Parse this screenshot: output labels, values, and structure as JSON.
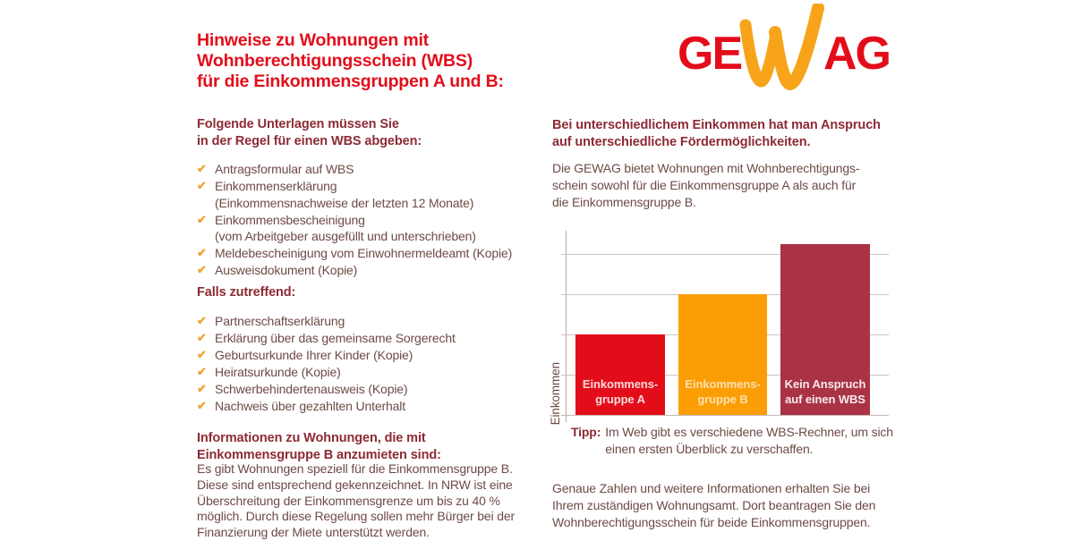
{
  "colors": {
    "brand_red": "#e30d1a",
    "brand_orange": "#f7a41b",
    "dark_heading": "#8d2a33",
    "body_text": "#6e4a46",
    "check_orange": "#f2a233"
  },
  "icons": {
    "check": "✔"
  },
  "title": {
    "lines": [
      "Hinweise zu Wohnungen mit",
      "Wohnberechtigungsschein (WBS)",
      "für die Einkommensgruppen A und B:"
    ]
  },
  "logo": {
    "part1": "GE",
    "w": "W",
    "part2": "AG"
  },
  "left": {
    "section1": {
      "heading_lines": [
        "Folgende Unterlagen müssen Sie",
        "in der Regel für einen WBS abgeben:"
      ],
      "items": [
        {
          "lines": [
            "Antragsformular auf WBS"
          ]
        },
        {
          "lines": [
            "Einkommenserklärung",
            "(Einkommensnachweise der letzten 12 Monate)"
          ]
        },
        {
          "lines": [
            "Einkommensbescheinigung",
            "(vom Arbeitgeber ausgefüllt und unterschrieben)"
          ]
        },
        {
          "lines": [
            "Meldebescheinigung vom Einwohnermeldeamt (Kopie)"
          ]
        },
        {
          "lines": [
            "Ausweisdokument (Kopie)"
          ]
        }
      ]
    },
    "section2": {
      "heading": "Falls zutreffend:",
      "items": [
        {
          "lines": [
            "Partnerschaftserklärung"
          ]
        },
        {
          "lines": [
            "Erklärung über das gemeinsame Sorgerecht"
          ]
        },
        {
          "lines": [
            "Geburtsurkunde Ihrer Kinder (Kopie)"
          ]
        },
        {
          "lines": [
            "Heiratsurkunde (Kopie)"
          ]
        },
        {
          "lines": [
            "Schwerbehindertenausweis (Kopie)"
          ]
        },
        {
          "lines": [
            "Nachweis über gezahlten Unterhalt"
          ]
        }
      ]
    },
    "section3": {
      "heading_lines": [
        "Informationen zu Wohnungen, die mit",
        "Einkommensgruppe B anzumieten sind:"
      ],
      "body_lines": [
        "Es gibt Wohnungen speziell für die Einkommensgruppe B.",
        "Diese sind entsprechend gekennzeichnet. In NRW ist eine",
        "Überschreitung der Einkommensgrenze um bis zu 40 %",
        "möglich. Durch diese Regelung sollen mehr Bürger bei der",
        "Finanzierung der Miete unterstützt werden."
      ]
    }
  },
  "right": {
    "heading_lines": [
      "Bei unterschiedlichem Einkommen hat man Anspruch",
      "auf unterschiedliche Fördermöglichkeiten."
    ],
    "intro_lines": [
      "Die GEWAG bietet Wohnungen mit Wohnberechtigungs-",
      "schein sowohl für die Einkommensgruppe A als auch für",
      "die Einkommensgruppe B."
    ],
    "tip_label": "Tipp:",
    "tip_lines": [
      "Im Web gibt es verschiedene WBS-Rechner, um sich",
      "einen ersten Überblick zu verschaffen."
    ],
    "outro_lines": [
      "Genaue Zahlen und weitere Informationen erhalten Sie bei",
      "Ihrem zuständigen Wohnungsamt. Dort beantragen Sie den",
      "Wohnberechtigungsschein für beide Einkommensgruppen."
    ]
  },
  "chart_data": {
    "type": "bar",
    "title": "",
    "xlabel": "",
    "ylabel": "Einkommen",
    "categories": [
      "Einkommensgruppe A",
      "Einkommensgruppe B",
      "Kein Anspruch auf einen WBS"
    ],
    "label_lines": [
      [
        "Einkommens-",
        "gruppe A"
      ],
      [
        "Einkommens-",
        "gruppe B"
      ],
      [
        "Kein Anspruch",
        "auf einen WBS"
      ]
    ],
    "values": [
      2,
      3,
      4.25
    ],
    "ylim": [
      0,
      4.6
    ],
    "gridline_values": [
      1,
      2,
      3,
      4
    ],
    "grid": true,
    "legend": false,
    "colors": [
      "#e30d1a",
      "#fb9e06",
      "#a93345"
    ],
    "label_colors": [
      "rgba(255,255,255,0.85)",
      "rgba(255,248,235,0.72)",
      "rgba(255,255,255,0.9)"
    ]
  }
}
